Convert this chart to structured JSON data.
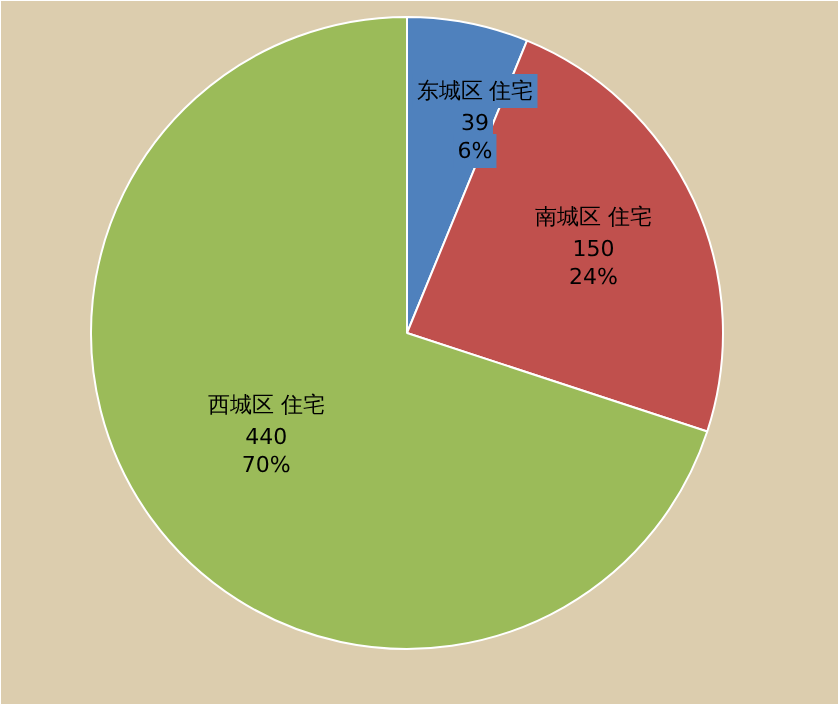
{
  "chart_data": {
    "type": "pie",
    "categories": [
      "东城区 住宅",
      "南城区 住宅",
      "西城区 住宅"
    ],
    "values": [
      39,
      150,
      440
    ],
    "colors": [
      "#4f81bd",
      "#c0504d",
      "#9bbb59"
    ],
    "value_labels": [
      "39\n6%",
      "150\n24%",
      "440\n70%"
    ]
  }
}
